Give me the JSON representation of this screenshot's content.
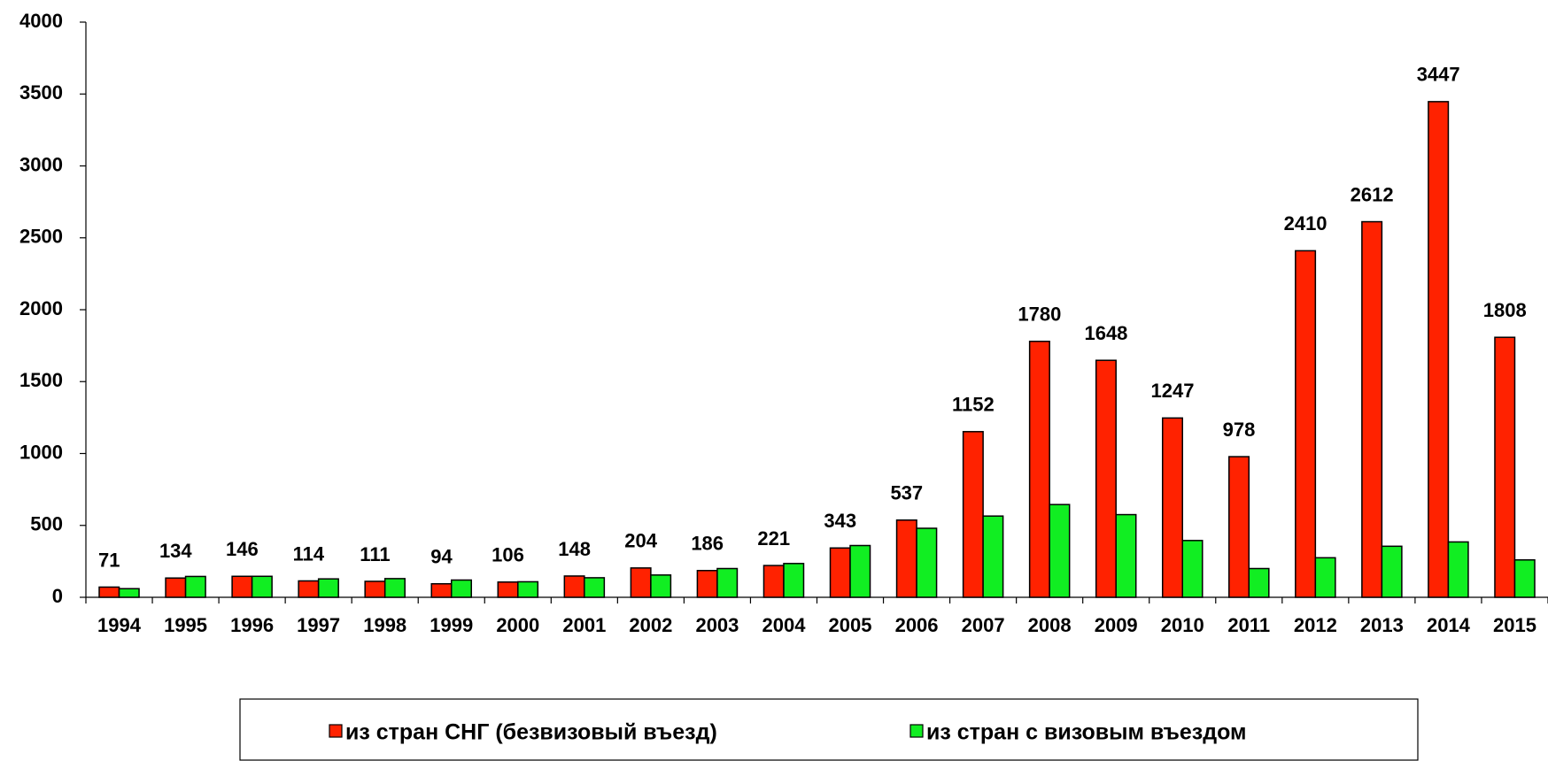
{
  "chart_data": {
    "type": "bar",
    "categories": [
      "1994",
      "1995",
      "1996",
      "1997",
      "1998",
      "1999",
      "2000",
      "2001",
      "2002",
      "2003",
      "2004",
      "2005",
      "2006",
      "2007",
      "2008",
      "2009",
      "2010",
      "2011",
      "2012",
      "2013",
      "2014",
      "2015"
    ],
    "series": [
      {
        "name": "из стран СНГ (безвизовый въезд)",
        "color": "#ff2200",
        "values": [
          71,
          134,
          146,
          114,
          111,
          94,
          106,
          148,
          204,
          186,
          221,
          343,
          537,
          1152,
          1780,
          1648,
          1247,
          978,
          2410,
          2612,
          3447,
          1808
        ]
      },
      {
        "name": "из стран с визовым въездом",
        "color": "#11ee22",
        "values": [
          60,
          145,
          146,
          128,
          130,
          120,
          108,
          136,
          155,
          200,
          235,
          360,
          480,
          565,
          645,
          575,
          395,
          200,
          275,
          355,
          385,
          260
        ]
      }
    ],
    "data_labels_series": 0,
    "ylim": [
      0,
      4000
    ],
    "yticks": [
      0,
      500,
      1000,
      1500,
      2000,
      2500,
      3000,
      3500,
      4000
    ],
    "grid": false,
    "legend": "bottom"
  }
}
